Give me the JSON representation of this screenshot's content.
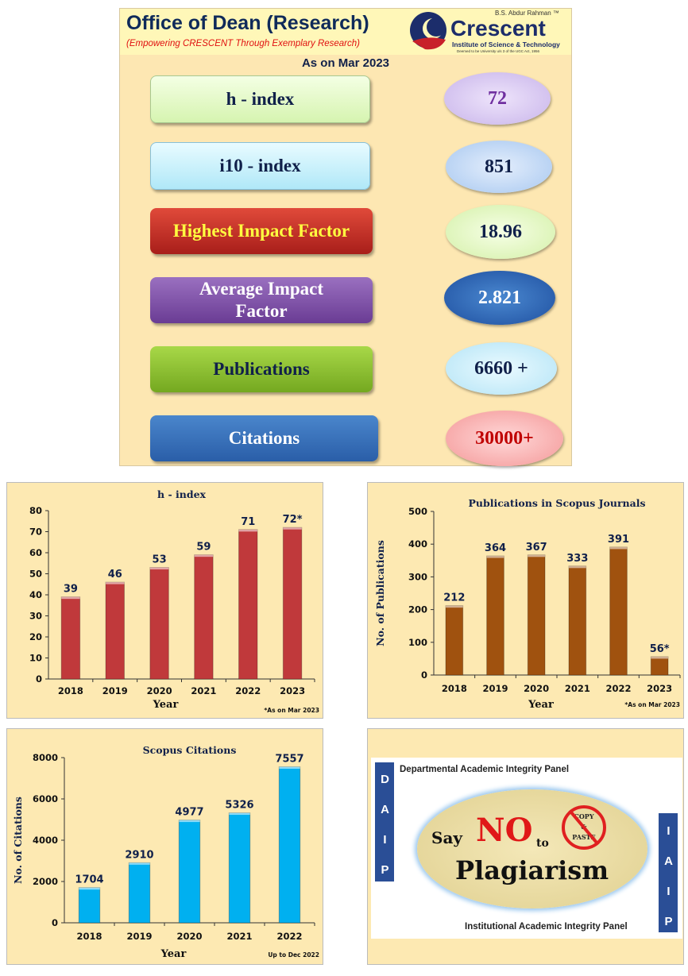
{
  "header": {
    "title": "Office of Dean (Research)",
    "subtitle": "(Empowering CRESCENT Through Exemplary Research)",
    "logo": {
      "top": "B.S. Abdur Rahman ™",
      "name": "Crescent",
      "line": "Institute of Science & Technology",
      "small": "Deemed to be University u/s 3 of the UGC Act, 1956"
    },
    "as_on": "As on Mar 2023"
  },
  "metrics": [
    {
      "label": "h - index",
      "value": "72"
    },
    {
      "label": "i10 - index",
      "value": "851"
    },
    {
      "label": "Highest Impact Factor",
      "value": "18.96"
    },
    {
      "label": "Average Impact Factor",
      "value": "2.821"
    },
    {
      "label": "Publications",
      "value": "6660 +"
    },
    {
      "label": "Citations",
      "value": "30000+"
    }
  ],
  "colors": {
    "hindex": "#c0393b",
    "pubs": "#a0520f",
    "cites": "#00b0f0"
  },
  "chart_data": [
    {
      "type": "bar",
      "title": "h - index",
      "categories": [
        "2018",
        "2019",
        "2020",
        "2021",
        "2022",
        "2023"
      ],
      "values": [
        39,
        46,
        53,
        59,
        71,
        72
      ],
      "labels": [
        "39",
        "46",
        "53",
        "59",
        "71",
        "72*"
      ],
      "xlabel": "Year",
      "ylabel": "",
      "ylim": [
        0,
        80
      ],
      "yticks": [
        "0",
        "10",
        "20",
        "30",
        "40",
        "50",
        "60",
        "70",
        "80"
      ],
      "note": "*As on Mar 2023"
    },
    {
      "type": "bar",
      "title": "Publications in Scopus Journals",
      "categories": [
        "2018",
        "2019",
        "2020",
        "2021",
        "2022",
        "2023"
      ],
      "values": [
        212,
        364,
        367,
        333,
        391,
        56
      ],
      "labels": [
        "212",
        "364",
        "367",
        "333",
        "391",
        "56*"
      ],
      "xlabel": "Year",
      "ylabel": "No. of Publications",
      "ylim": [
        0,
        500
      ],
      "yticks": [
        "0",
        "100",
        "200",
        "300",
        "400",
        "500"
      ],
      "note": "*As on Mar 2023"
    },
    {
      "type": "bar",
      "title": "Scopus Citations",
      "categories": [
        "2018",
        "2019",
        "2020",
        "2021",
        "2022"
      ],
      "values": [
        1704,
        2910,
        4977,
        5326,
        7557
      ],
      "labels": [
        "1704",
        "2910",
        "4977",
        "5326",
        "7557"
      ],
      "xlabel": "Year",
      "ylabel": "No. of Citations",
      "ylim": [
        0,
        8000
      ],
      "yticks": [
        "0",
        "2000",
        "4000",
        "6000",
        "8000"
      ],
      "note": "Up to Dec 2022"
    }
  ],
  "poster": {
    "top_panel": "Departmental Academic Integrity Panel",
    "bottom_panel": "Institutional Academic Integrity Panel",
    "left_acronym": "D A I P",
    "right_acronym": "I A I P",
    "say": "Say",
    "no": "NO",
    "to": "to",
    "word": "Plagiarism",
    "copy": "COPY",
    "amp": "&",
    "paste": "PASTE"
  }
}
